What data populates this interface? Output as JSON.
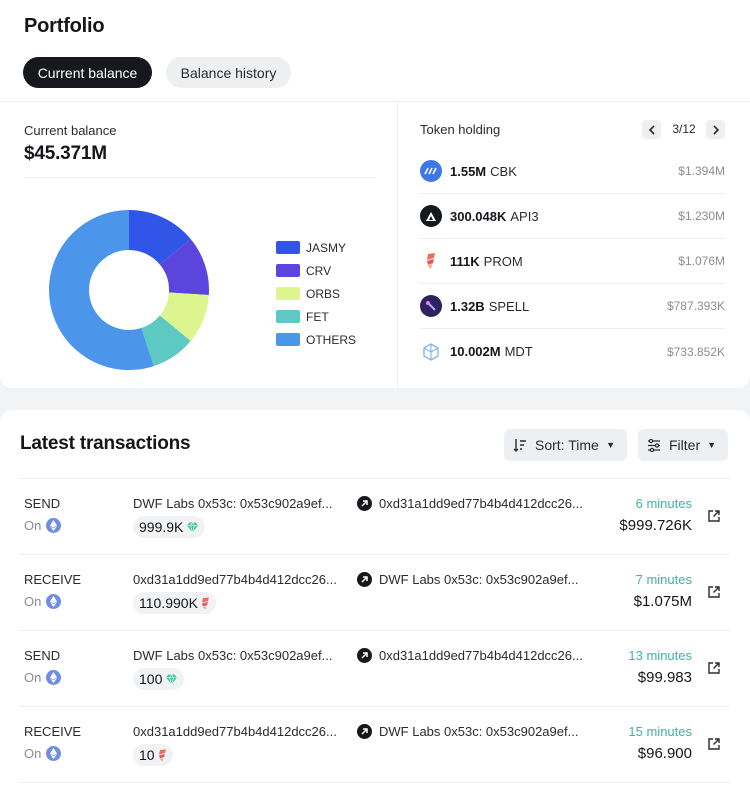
{
  "page": {
    "title": "Portfolio"
  },
  "tabs": [
    {
      "label": "Current balance",
      "active": true
    },
    {
      "label": "Balance history",
      "active": false
    }
  ],
  "balance": {
    "label": "Current balance",
    "value": "$45.371M"
  },
  "chart_data": {
    "type": "pie",
    "style": "donut",
    "categories": [
      "JASMY",
      "CRV",
      "ORBS",
      "FET",
      "OTHERS"
    ],
    "values": [
      14,
      12,
      10,
      9,
      55
    ],
    "unit": "% of balance (estimated)",
    "colors": [
      "#3155e6",
      "#5b45dd",
      "#dcf58f",
      "#5ec9c3",
      "#4b95ea"
    ],
    "legend_position": "right"
  },
  "token_holding": {
    "title": "Token holding",
    "page": "3/12",
    "items": [
      {
        "amount": "1.55M",
        "symbol": "CBK",
        "value": "$1.394M",
        "icon": "cbk-icon"
      },
      {
        "amount": "300.048K",
        "symbol": "API3",
        "value": "$1.230M",
        "icon": "api3-icon"
      },
      {
        "amount": "111K",
        "symbol": "PROM",
        "value": "$1.076M",
        "icon": "prom-icon"
      },
      {
        "amount": "1.32B",
        "symbol": "SPELL",
        "value": "$787.393K",
        "icon": "spell-icon"
      },
      {
        "amount": "10.002M",
        "symbol": "MDT",
        "value": "$733.852K",
        "icon": "mdt-icon"
      }
    ]
  },
  "transactions": {
    "title": "Latest transactions",
    "sort_label": "Sort: Time",
    "filter_label": "Filter",
    "on_label": "On",
    "rows": [
      {
        "type": "SEND",
        "from": "DWF Labs 0x53c: 0x53c902a9ef...",
        "to": "0xd31a1dd9ed77b4b4d412dcc26...",
        "amount": "999.9K",
        "token_icon": "diamond-token-icon",
        "time": "6 minutes",
        "usd": "$999.726K"
      },
      {
        "type": "RECEIVE",
        "from": "0xd31a1dd9ed77b4b4d412dcc26...",
        "to": "DWF Labs 0x53c: 0x53c902a9ef...",
        "amount": "110.990K",
        "token_icon": "prom-token-icon",
        "time": "7 minutes",
        "usd": "$1.075M"
      },
      {
        "type": "SEND",
        "from": "DWF Labs 0x53c: 0x53c902a9ef...",
        "to": "0xd31a1dd9ed77b4b4d412dcc26...",
        "amount": "100",
        "token_icon": "diamond-token-icon",
        "time": "13 minutes",
        "usd": "$99.983"
      },
      {
        "type": "RECEIVE",
        "from": "0xd31a1dd9ed77b4b4d412dcc26...",
        "to": "DWF Labs 0x53c: 0x53c902a9ef...",
        "amount": "10",
        "token_icon": "prom-token-icon",
        "time": "15 minutes",
        "usd": "$96.900"
      }
    ]
  }
}
